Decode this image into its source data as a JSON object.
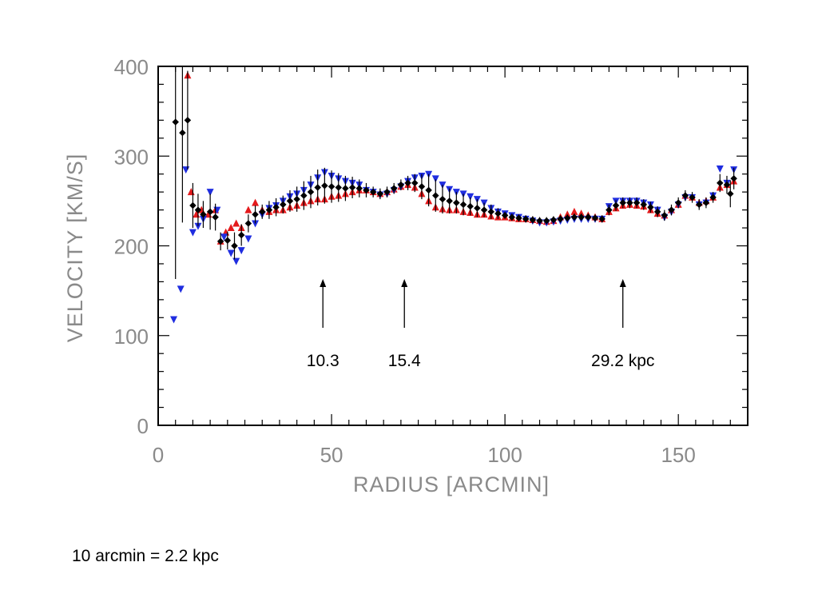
{
  "colors": {
    "series_red": "#e41a1c",
    "series_blue": "#1f2de0",
    "series_black": "#000000",
    "axis": "#000000",
    "tick_label": "#8a8a8a"
  },
  "footnote": "10 arcmin = 2.2 kpc",
  "chart_data": {
    "type": "scatter",
    "title": "",
    "xlabel": "RADIUS [ARCMIN]",
    "ylabel": "VELOCITY [KM/S]",
    "xlim": [
      0,
      170
    ],
    "ylim": [
      0,
      400
    ],
    "x_ticks": [
      0,
      50,
      100,
      150
    ],
    "x_tick_labels": [
      "0",
      "50",
      "100",
      "150"
    ],
    "y_ticks": [
      0,
      100,
      200,
      300,
      400
    ],
    "y_tick_labels": [
      "0",
      "100",
      "200",
      "300",
      "400"
    ],
    "grid": false,
    "annotations": [
      {
        "x": 47.5,
        "text": "10.3"
      },
      {
        "x": 71.0,
        "text": "15.4"
      },
      {
        "x": 134.0,
        "text": "29.2 kpc"
      }
    ],
    "series": [
      {
        "marker": "triangle-up",
        "color": "red",
        "points": [
          [
            8.5,
            390
          ],
          [
            9.5,
            260
          ],
          [
            11,
            235
          ],
          [
            12.5,
            240
          ],
          [
            14.5,
            235
          ],
          [
            16.5,
            240
          ],
          [
            18,
            205
          ],
          [
            19.5,
            215
          ],
          [
            21,
            220
          ],
          [
            22.5,
            225
          ],
          [
            24,
            220
          ],
          [
            26,
            240
          ],
          [
            28,
            248
          ],
          [
            30,
            240
          ],
          [
            32,
            238
          ],
          [
            34,
            240
          ],
          [
            36,
            240
          ],
          [
            38,
            243
          ],
          [
            40,
            245
          ],
          [
            42,
            248
          ],
          [
            44,
            250
          ],
          [
            46,
            252
          ],
          [
            48,
            252
          ],
          [
            50,
            255
          ],
          [
            52,
            256
          ],
          [
            54,
            258
          ],
          [
            56,
            260
          ],
          [
            58,
            262
          ],
          [
            60,
            262
          ],
          [
            62,
            260
          ],
          [
            64,
            258
          ],
          [
            66,
            260
          ],
          [
            68,
            263
          ],
          [
            70,
            266
          ],
          [
            72,
            268
          ],
          [
            74,
            265
          ],
          [
            76,
            258
          ],
          [
            78,
            250
          ],
          [
            80,
            243
          ],
          [
            82,
            241
          ],
          [
            84,
            240
          ],
          [
            86,
            240
          ],
          [
            88,
            238
          ],
          [
            90,
            237
          ],
          [
            92,
            235
          ],
          [
            94,
            235
          ],
          [
            96,
            233
          ],
          [
            98,
            232
          ],
          [
            100,
            232
          ],
          [
            102,
            231
          ],
          [
            104,
            230
          ],
          [
            106,
            230
          ],
          [
            108,
            229
          ],
          [
            110,
            228
          ],
          [
            112,
            227
          ],
          [
            114,
            228
          ],
          [
            116,
            232
          ],
          [
            118,
            235
          ],
          [
            120,
            238
          ],
          [
            122,
            236
          ],
          [
            124,
            234
          ],
          [
            126,
            232
          ],
          [
            128,
            230
          ],
          [
            130,
            238
          ],
          [
            132,
            242
          ],
          [
            134,
            245
          ],
          [
            136,
            246
          ],
          [
            138,
            245
          ],
          [
            140,
            244
          ],
          [
            142,
            240
          ],
          [
            144,
            236
          ],
          [
            146,
            234
          ],
          [
            148,
            240
          ],
          [
            150,
            246
          ],
          [
            152,
            256
          ],
          [
            154,
            254
          ],
          [
            156,
            248
          ],
          [
            158,
            250
          ],
          [
            160,
            254
          ],
          [
            162,
            265
          ],
          [
            164,
            268
          ],
          [
            166,
            272
          ]
        ]
      },
      {
        "marker": "triangle-down",
        "color": "blue",
        "points": [
          [
            4.5,
            118
          ],
          [
            6.5,
            152
          ],
          [
            8,
            285
          ],
          [
            10,
            215
          ],
          [
            11.5,
            222
          ],
          [
            13,
            230
          ],
          [
            15,
            260
          ],
          [
            17,
            240
          ],
          [
            19,
            210
          ],
          [
            21,
            192
          ],
          [
            22.5,
            183
          ],
          [
            24,
            195
          ],
          [
            26,
            208
          ],
          [
            28,
            225
          ],
          [
            30,
            235
          ],
          [
            32,
            242
          ],
          [
            34,
            245
          ],
          [
            36,
            250
          ],
          [
            38,
            255
          ],
          [
            40,
            258
          ],
          [
            42,
            262
          ],
          [
            44,
            268
          ],
          [
            46,
            276
          ],
          [
            48,
            282
          ],
          [
            50,
            278
          ],
          [
            52,
            275
          ],
          [
            54,
            272
          ],
          [
            56,
            270
          ],
          [
            58,
            268
          ],
          [
            60,
            262
          ],
          [
            62,
            260
          ],
          [
            64,
            257
          ],
          [
            66,
            258
          ],
          [
            68,
            262
          ],
          [
            70,
            266
          ],
          [
            72,
            272
          ],
          [
            74,
            276
          ],
          [
            76,
            278
          ],
          [
            78,
            280
          ],
          [
            80,
            275
          ],
          [
            82,
            268
          ],
          [
            84,
            263
          ],
          [
            86,
            260
          ],
          [
            88,
            258
          ],
          [
            90,
            255
          ],
          [
            92,
            252
          ],
          [
            94,
            248
          ],
          [
            96,
            242
          ],
          [
            98,
            238
          ],
          [
            100,
            236
          ],
          [
            102,
            234
          ],
          [
            104,
            232
          ],
          [
            106,
            230
          ],
          [
            108,
            228
          ],
          [
            110,
            226
          ],
          [
            112,
            226
          ],
          [
            114,
            227
          ],
          [
            116,
            228
          ],
          [
            118,
            229
          ],
          [
            120,
            230
          ],
          [
            122,
            230
          ],
          [
            124,
            230
          ],
          [
            126,
            230
          ],
          [
            128,
            230
          ],
          [
            130,
            244
          ],
          [
            132,
            250
          ],
          [
            134,
            250
          ],
          [
            136,
            250
          ],
          [
            138,
            250
          ],
          [
            140,
            248
          ],
          [
            142,
            246
          ],
          [
            144,
            240
          ],
          [
            146,
            232
          ],
          [
            148,
            238
          ],
          [
            150,
            246
          ],
          [
            152,
            254
          ],
          [
            154,
            254
          ],
          [
            156,
            246
          ],
          [
            158,
            248
          ],
          [
            160,
            256
          ],
          [
            162,
            286
          ],
          [
            164,
            270
          ],
          [
            166,
            285
          ]
        ]
      },
      {
        "marker": "diamond",
        "color": "black",
        "points": [
          [
            5,
            338,
            175
          ],
          [
            7,
            326,
            100
          ],
          [
            8.5,
            340,
            55
          ],
          [
            10,
            245,
            25
          ],
          [
            11.5,
            240,
            18
          ],
          [
            13,
            235,
            15
          ],
          [
            15,
            238,
            20
          ],
          [
            16.5,
            232,
            15
          ],
          [
            18,
            205,
            10
          ],
          [
            20,
            206,
            10
          ],
          [
            22,
            200,
            15
          ],
          [
            24,
            212,
            12
          ],
          [
            26,
            225,
            10
          ],
          [
            28,
            235,
            10
          ],
          [
            30,
            238,
            8
          ],
          [
            32,
            240,
            10
          ],
          [
            34,
            243,
            10
          ],
          [
            36,
            246,
            10
          ],
          [
            38,
            250,
            12
          ],
          [
            40,
            252,
            14
          ],
          [
            42,
            256,
            16
          ],
          [
            44,
            260,
            18
          ],
          [
            46,
            265,
            20
          ],
          [
            48,
            267,
            20
          ],
          [
            50,
            266,
            18
          ],
          [
            52,
            265,
            16
          ],
          [
            54,
            264,
            14
          ],
          [
            56,
            265,
            12
          ],
          [
            58,
            264,
            10
          ],
          [
            60,
            262,
            8
          ],
          [
            62,
            260,
            6
          ],
          [
            64,
            258,
            6
          ],
          [
            66,
            260,
            6
          ],
          [
            68,
            264,
            6
          ],
          [
            70,
            268,
            6
          ],
          [
            72,
            270,
            8
          ],
          [
            74,
            270,
            10
          ],
          [
            76,
            266,
            14
          ],
          [
            78,
            262,
            18
          ],
          [
            80,
            256,
            18
          ],
          [
            82,
            252,
            16
          ],
          [
            84,
            250,
            14
          ],
          [
            86,
            248,
            12
          ],
          [
            88,
            246,
            12
          ],
          [
            90,
            244,
            10
          ],
          [
            92,
            242,
            10
          ],
          [
            94,
            240,
            8
          ],
          [
            96,
            238,
            8
          ],
          [
            98,
            236,
            6
          ],
          [
            100,
            234,
            4
          ],
          [
            102,
            232,
            4
          ],
          [
            104,
            231,
            4
          ],
          [
            106,
            230,
            4
          ],
          [
            108,
            229,
            4
          ],
          [
            110,
            228,
            4
          ],
          [
            112,
            228,
            4
          ],
          [
            114,
            229,
            4
          ],
          [
            116,
            230,
            4
          ],
          [
            118,
            231,
            4
          ],
          [
            120,
            232,
            4
          ],
          [
            122,
            232,
            4
          ],
          [
            124,
            232,
            4
          ],
          [
            126,
            231,
            4
          ],
          [
            128,
            230,
            4
          ],
          [
            130,
            240,
            6
          ],
          [
            132,
            245,
            6
          ],
          [
            134,
            248,
            6
          ],
          [
            136,
            248,
            6
          ],
          [
            138,
            248,
            6
          ],
          [
            140,
            246,
            6
          ],
          [
            142,
            243,
            6
          ],
          [
            144,
            238,
            6
          ],
          [
            146,
            234,
            6
          ],
          [
            148,
            240,
            6
          ],
          [
            150,
            248,
            6
          ],
          [
            152,
            256,
            6
          ],
          [
            154,
            254,
            6
          ],
          [
            156,
            246,
            6
          ],
          [
            158,
            248,
            6
          ],
          [
            160,
            254,
            6
          ],
          [
            162,
            270,
            10
          ],
          [
            164,
            268,
            10
          ],
          [
            165,
            258,
            15
          ],
          [
            166,
            275,
            12
          ]
        ]
      }
    ]
  }
}
